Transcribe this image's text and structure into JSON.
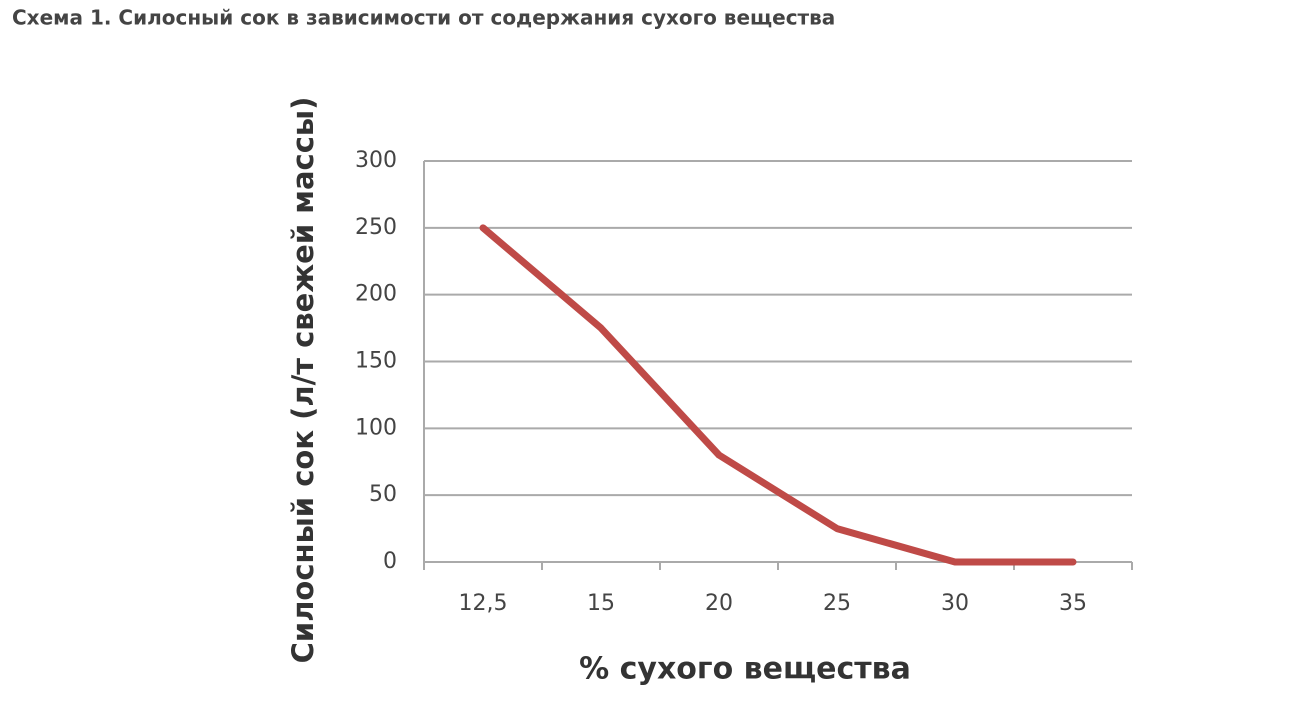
{
  "chart_data": {
    "type": "line",
    "title": "Схема 1. Силосный сок в зависимости от содержания сухого вещества",
    "y_label": "Силосный сок (л/т свежей массы)",
    "x_label": "% сухого вещества",
    "categories": [
      "12,5",
      "15",
      "20",
      "25",
      "30",
      "35"
    ],
    "values": [
      250,
      175,
      80,
      25,
      0,
      0
    ],
    "color": "#bf4a47",
    "ylim": [
      0,
      300
    ],
    "yticks": [
      0,
      50,
      100,
      150,
      200,
      250,
      300
    ],
    "grid": true
  }
}
